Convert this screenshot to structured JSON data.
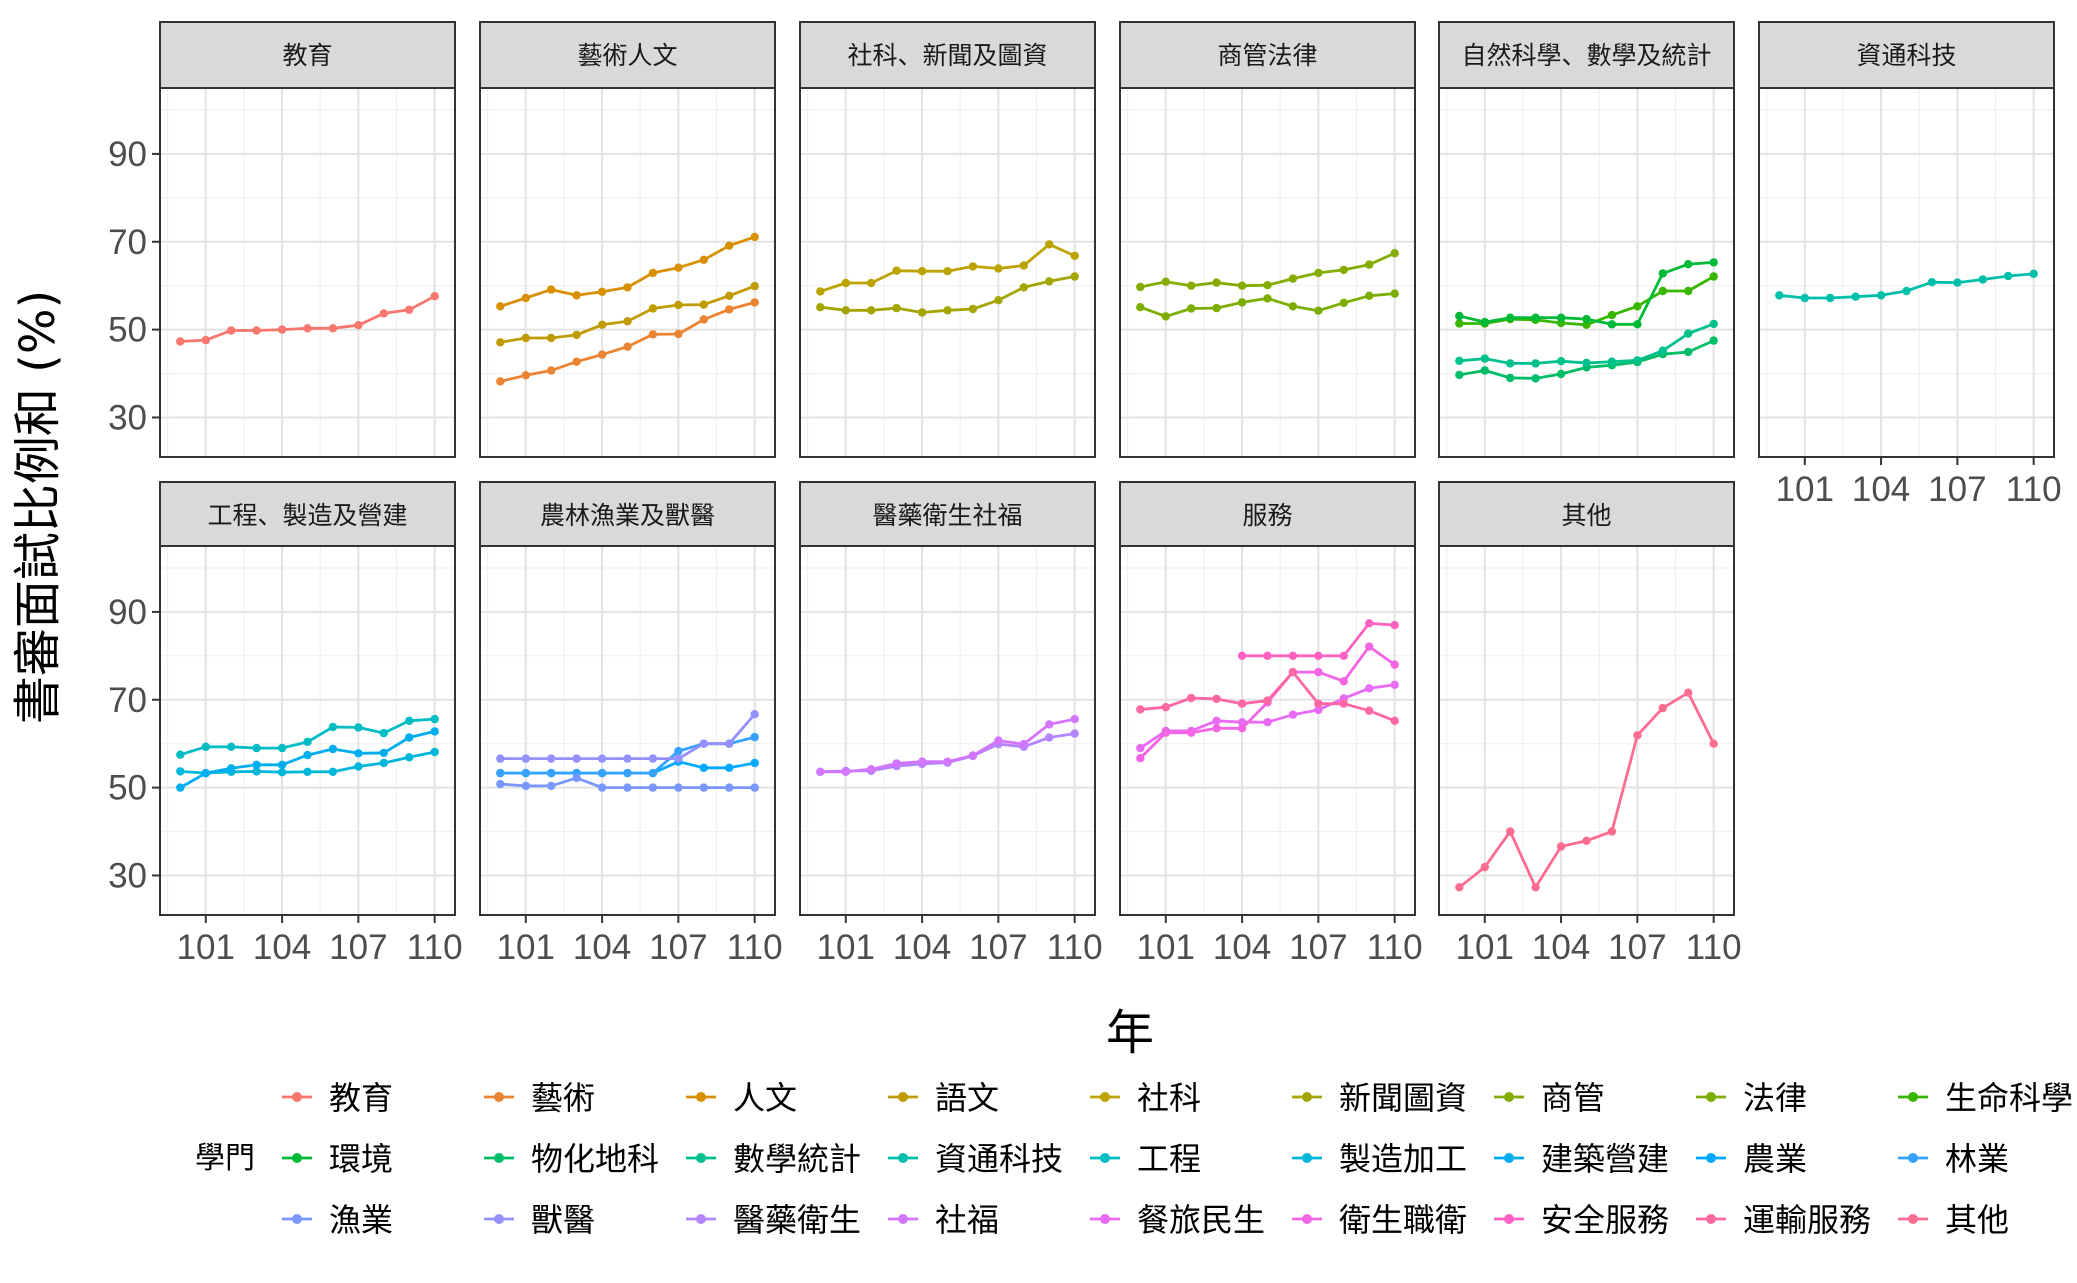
{
  "chart_data": {
    "type": "line",
    "xlabel": "年",
    "ylabel": "書審面試比例和 (%)",
    "xlim": [
      99.2,
      110.8
    ],
    "ylim": [
      21,
      105
    ],
    "x_ticks": [
      101,
      104,
      107,
      110
    ],
    "x_tick_labels": [
      "101",
      "104",
      "107",
      "110"
    ],
    "y_ticks": [
      30,
      50,
      70,
      90
    ],
    "y_tick_labels": [
      "30",
      "50",
      "70",
      "90"
    ],
    "grid": true,
    "legend_title": "學門",
    "legend_position": "bottom",
    "x": [
      100,
      101,
      102,
      103,
      104,
      105,
      106,
      107,
      108,
      109,
      110
    ],
    "legend": [
      {
        "name": "教育",
        "color": "#F8766D"
      },
      {
        "name": "藝術",
        "color": "#EA8332"
      },
      {
        "name": "人文",
        "color": "#D89000"
      },
      {
        "name": "語文",
        "color": "#C09B00"
      },
      {
        "name": "社科",
        "color": "#BCA300"
      },
      {
        "name": "新聞圖資",
        "color": "#A3A500"
      },
      {
        "name": "商管",
        "color": "#84AD00"
      },
      {
        "name": "法律",
        "color": "#7CAE00"
      },
      {
        "name": "生命科學",
        "color": "#39B600"
      },
      {
        "name": "環境",
        "color": "#00BA38"
      },
      {
        "name": "物化地科",
        "color": "#00BE67"
      },
      {
        "name": "數學統計",
        "color": "#00C08B"
      },
      {
        "name": "資通科技",
        "color": "#00BFAA"
      },
      {
        "name": "工程",
        "color": "#00BCC4"
      },
      {
        "name": "製造加工",
        "color": "#00B6DA"
      },
      {
        "name": "建築營建",
        "color": "#00ADEF"
      },
      {
        "name": "農業",
        "color": "#00A9FF"
      },
      {
        "name": "林業",
        "color": "#35A2FF"
      },
      {
        "name": "漁業",
        "color": "#7997FF"
      },
      {
        "name": "獸醫",
        "color": "#9590FF"
      },
      {
        "name": "醫藥衛生",
        "color": "#B385FF"
      },
      {
        "name": "社福",
        "color": "#D376FF"
      },
      {
        "name": "餐旅民生",
        "color": "#E76BF3"
      },
      {
        "name": "衛生職衛",
        "color": "#F465E3"
      },
      {
        "name": "安全服務",
        "color": "#FF61C3"
      },
      {
        "name": "運輸服務",
        "color": "#FF67A4"
      },
      {
        "name": "其他",
        "color": "#FF6C91"
      }
    ],
    "panels": [
      {
        "strip": "教育",
        "series": [
          {
            "name": "教育",
            "color": "#F8766D",
            "values": [
              47.3,
              47.6,
              49.8,
              49.8,
              50,
              50.3,
              50.3,
              51,
              53.7,
              54.5,
              57.6
            ]
          }
        ]
      },
      {
        "strip": "藝術人文",
        "series": [
          {
            "name": "藝術",
            "color": "#EA8332",
            "values": [
              38.2,
              39.6,
              40.7,
              42.7,
              44.3,
              46.1,
              48.9,
              49,
              52.3,
              54.6,
              56.2
            ]
          },
          {
            "name": "人文",
            "color": "#D89000",
            "values": [
              55.3,
              57.2,
              59.1,
              57.8,
              58.6,
              59.6,
              62.9,
              64.1,
              65.9,
              69.1,
              71.1
            ]
          },
          {
            "name": "語文",
            "color": "#C09B00",
            "values": [
              47.1,
              48.1,
              48.1,
              48.8,
              51.1,
              51.9,
              54.8,
              55.6,
              55.7,
              57.7,
              59.9
            ]
          }
        ]
      },
      {
        "strip": "社科、新聞及圖資",
        "series": [
          {
            "name": "社科",
            "color": "#BCA300",
            "values": [
              58.7,
              60.6,
              60.6,
              63.4,
              63.3,
              63.3,
              64.4,
              63.9,
              64.6,
              69.4,
              66.8
            ]
          },
          {
            "name": "新聞圖資",
            "color": "#A3A500",
            "values": [
              55.1,
              54.4,
              54.4,
              54.9,
              53.9,
              54.4,
              54.7,
              56.7,
              59.6,
              61,
              62.1
            ]
          }
        ]
      },
      {
        "strip": "商管法律",
        "series": [
          {
            "name": "商管",
            "color": "#84AD00",
            "values": [
              59.7,
              60.9,
              60,
              60.7,
              60,
              60.1,
              61.6,
              62.9,
              63.6,
              64.8,
              67.4
            ]
          },
          {
            "name": "法律",
            "color": "#7CAE00",
            "values": [
              55.1,
              53,
              54.8,
              54.9,
              56.2,
              57.1,
              55.3,
              54.3,
              56.1,
              57.7,
              58.2
            ]
          }
        ]
      },
      {
        "strip": "自然科學、數學及統計",
        "series": [
          {
            "name": "生命科學",
            "color": "#39B600",
            "values": [
              51.4,
              51.4,
              52.4,
              52.2,
              51.5,
              51.1,
              53.3,
              55.3,
              58.8,
              58.8,
              62.1
            ]
          },
          {
            "name": "環境",
            "color": "#00BA38",
            "values": [
              53.1,
              51.7,
              52.7,
              52.7,
              52.7,
              52.4,
              51.2,
              51.2,
              62.8,
              64.9,
              65.3
            ]
          },
          {
            "name": "物化地科",
            "color": "#00BE67",
            "values": [
              39.7,
              40.7,
              39,
              38.9,
              39.9,
              41.4,
              41.9,
              42.6,
              44.4,
              44.9,
              47.5
            ]
          },
          {
            "name": "數學統計",
            "color": "#00C08B",
            "values": [
              42.9,
              43.4,
              42.3,
              42.3,
              42.8,
              42.4,
              42.7,
              43,
              45.2,
              49.1,
              51.3
            ]
          }
        ]
      },
      {
        "strip": "資通科技",
        "series": [
          {
            "name": "資通科技",
            "color": "#00BFAA",
            "values": [
              57.8,
              57.2,
              57.2,
              57.5,
              57.8,
              58.8,
              60.8,
              60.7,
              61.4,
              62.2,
              62.7
            ]
          }
        ]
      },
      {
        "strip": "工程、製造及營建",
        "series": [
          {
            "name": "工程",
            "color": "#00BCC4",
            "values": [
              57.5,
              59.3,
              59.3,
              59,
              59,
              60.4,
              63.8,
              63.7,
              62.4,
              65.2,
              65.6
            ]
          },
          {
            "name": "製造加工",
            "color": "#00B6DA",
            "values": [
              53.7,
              53.3,
              53.6,
              53.7,
              53.5,
              53.6,
              53.6,
              54.8,
              55.6,
              56.9,
              58.1
            ]
          },
          {
            "name": "建築營建",
            "color": "#00ADEF",
            "values": [
              50,
              53.3,
              54.4,
              55.2,
              55.2,
              57.4,
              58.8,
              57.8,
              57.9,
              61.4,
              62.8
            ]
          }
        ]
      },
      {
        "strip": "農林漁業及獸醫",
        "series": [
          {
            "name": "農業",
            "color": "#00A9FF",
            "values": [
              53.3,
              53.3,
              53.3,
              53.3,
              53.3,
              53.3,
              53.3,
              55.9,
              54.5,
              54.5,
              55.6
            ]
          },
          {
            "name": "林業",
            "color": "#35A2FF",
            "values": [
              53.3,
              53.3,
              53.3,
              53.3,
              53.3,
              53.3,
              53.3,
              58.3,
              60,
              60,
              61.5
            ]
          },
          {
            "name": "漁業",
            "color": "#7997FF",
            "values": [
              50.8,
              50.4,
              50.4,
              52.2,
              50,
              50,
              50,
              50,
              50,
              50,
              50
            ]
          },
          {
            "name": "獸醫",
            "color": "#9590FF",
            "values": [
              56.6,
              56.6,
              56.6,
              56.6,
              56.6,
              56.6,
              56.6,
              56.6,
              60,
              60,
              66.7
            ]
          }
        ]
      },
      {
        "strip": "醫藥衛生社福",
        "series": [
          {
            "name": "醫藥衛生",
            "color": "#B385FF",
            "values": [
              53.6,
              53.8,
              53.8,
              54.9,
              55.4,
              55.7,
              57.2,
              59.9,
              59.3,
              61.4,
              62.3
            ]
          },
          {
            "name": "社福",
            "color": "#D376FF",
            "values": [
              53.6,
              53.6,
              54.2,
              55.5,
              55.9,
              55.9,
              57.3,
              60.7,
              59.9,
              64.4,
              65.6
            ]
          }
        ]
      },
      {
        "strip": "服務",
        "series": [
          {
            "name": "餐旅民生",
            "color": "#E76BF3",
            "values": [
              59,
              62.9,
              62.9,
              65.2,
              64.9,
              64.9,
              66.6,
              67.7,
              70.3,
              72.6,
              73.4
            ]
          },
          {
            "name": "衛生職衛",
            "color": "#F465E3",
            "values": [
              56.7,
              62.5,
              62.5,
              63.5,
              63.5,
              69.4,
              76.3,
              76.3,
              74.2,
              82.1,
              78
            ]
          },
          {
            "name": "安全服務",
            "color": "#FF61C3",
            "values": [
              null,
              null,
              null,
              null,
              80,
              80,
              80,
              80,
              80,
              87.4,
              87
            ]
          },
          {
            "name": "運輸服務",
            "color": "#FF67A4",
            "values": [
              67.8,
              68.3,
              70.4,
              70.2,
              69.1,
              69.8,
              76.3,
              69.1,
              69.1,
              67.5,
              65.2
            ]
          }
        ]
      },
      {
        "strip": "其他",
        "series": [
          {
            "name": "其他",
            "color": "#FF6C91",
            "values": [
              27.3,
              31.9,
              40,
              27.3,
              36.6,
              37.9,
              40,
              61.9,
              68.1,
              71.6,
              60
            ]
          }
        ]
      }
    ]
  }
}
